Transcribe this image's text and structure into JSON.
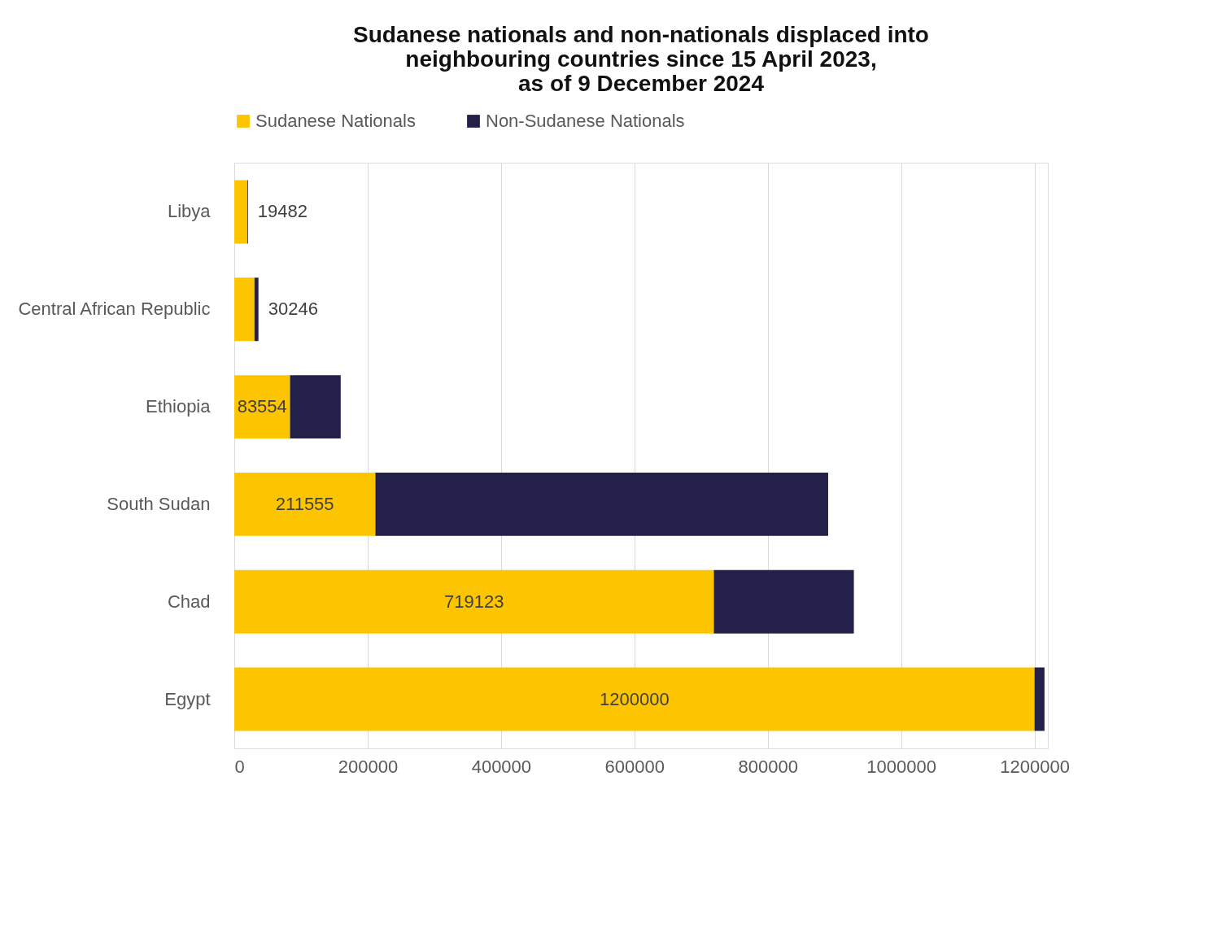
{
  "chart_data": {
    "type": "bar",
    "orientation": "horizontal",
    "stacked": true,
    "title": "Sudanese nationals and non-nationals displaced into neighbouring countries since 15 April 2023, as of 9 December 2024",
    "categories": [
      "Libya",
      "Central African Republic",
      "Ethiopia",
      "South Sudan",
      "Chad",
      "Egypt"
    ],
    "series": [
      {
        "name": "Sudanese Nationals",
        "color": "#fdc500",
        "values": [
          19482,
          30246,
          83554,
          211555,
          719123,
          1200000
        ],
        "value_labels": [
          "19482",
          "30246",
          "83554",
          "211555",
          "719123",
          "1200000"
        ]
      },
      {
        "name": "Non-Sudanese Nationals",
        "color": "#23214a",
        "values": [
          1000,
          6000,
          76000,
          679000,
          210000,
          15000
        ]
      }
    ],
    "xlim": [
      0,
      1220000
    ],
    "xticks": [
      0,
      200000,
      400000,
      600000,
      800000,
      1000000,
      1200000
    ],
    "grid": "x",
    "legend": "top"
  }
}
